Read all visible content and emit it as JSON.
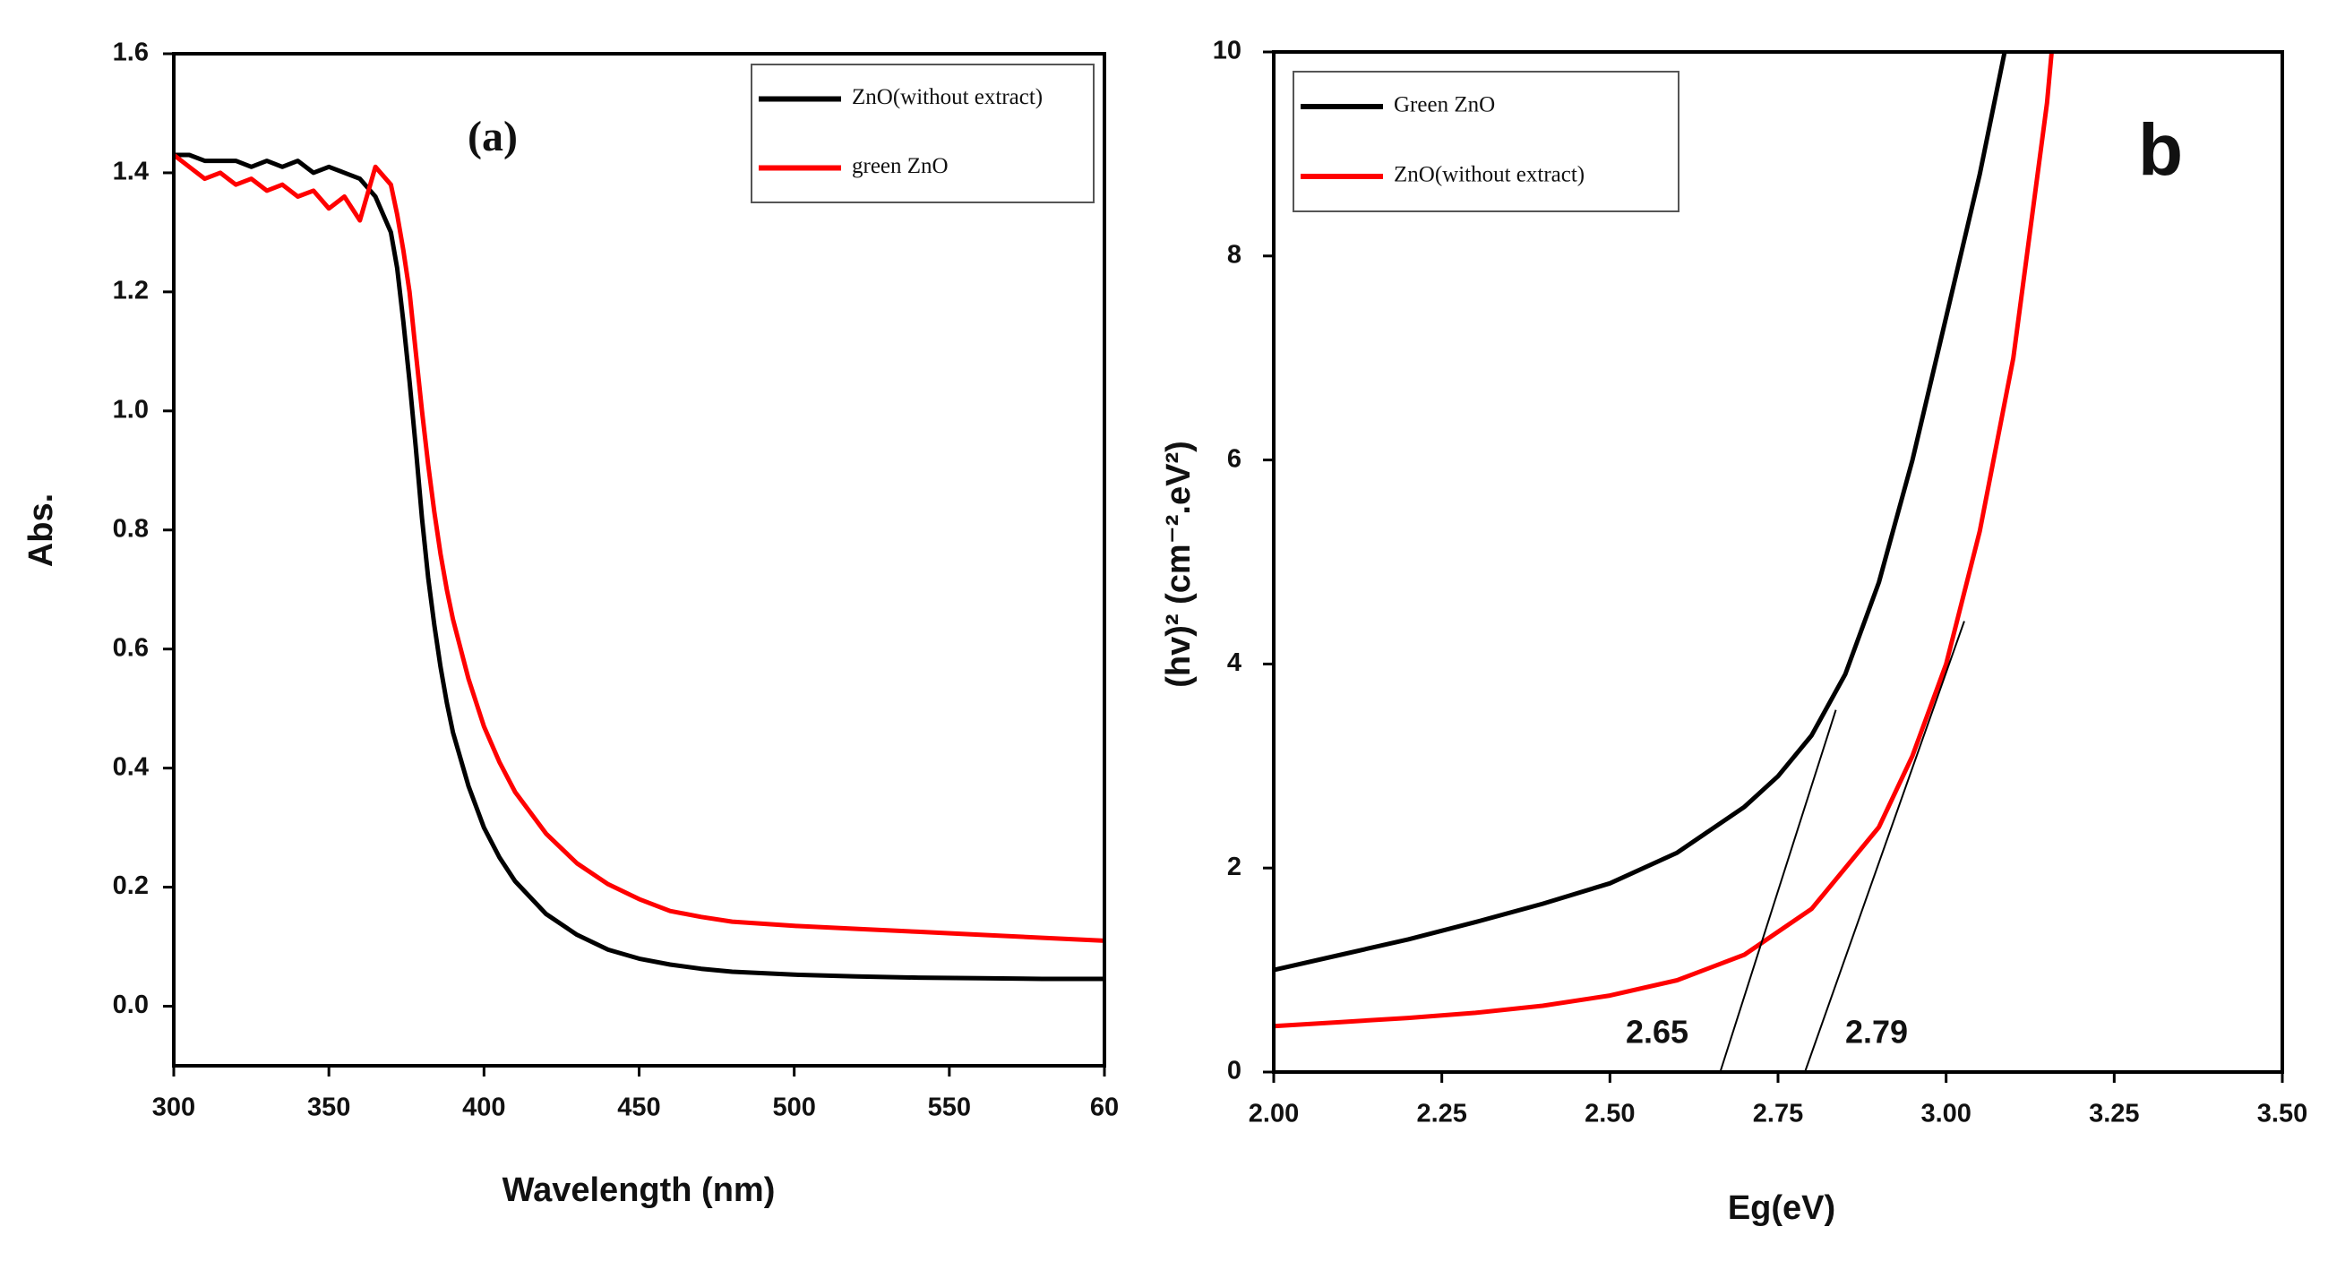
{
  "chart_data": [
    {
      "type": "line",
      "xlabel": "Wavelength (nm)",
      "ylabel": "Abs.",
      "annotations": [
        "(a)"
      ],
      "xlim": [
        300,
        600
      ],
      "ylim": [
        -0.1,
        1.6
      ],
      "xticks": [
        300,
        350,
        400,
        450,
        500,
        550,
        {
          "value": 600,
          "label": "60"
        }
      ],
      "yticks": [
        {
          "value": 0,
          "label": "0.0"
        },
        0.2,
        0.4,
        0.6,
        0.8,
        {
          "value": 1,
          "label": "1.0"
        },
        1.2,
        1.4,
        1.6
      ],
      "legend": "upper right",
      "x": [
        300,
        305,
        310,
        315,
        320,
        325,
        330,
        335,
        340,
        345,
        350,
        355,
        360,
        365,
        370,
        372,
        374,
        376,
        378,
        380,
        382,
        384,
        386,
        388,
        390,
        395,
        400,
        405,
        410,
        420,
        430,
        440,
        450,
        460,
        470,
        480,
        500,
        520,
        540,
        560,
        580,
        600
      ],
      "series": [
        {
          "name": "ZnO(without extract)",
          "color": "#000000",
          "values": [
            1.43,
            1.43,
            1.42,
            1.42,
            1.42,
            1.41,
            1.42,
            1.41,
            1.42,
            1.4,
            1.41,
            1.4,
            1.39,
            1.36,
            1.3,
            1.24,
            1.15,
            1.05,
            0.94,
            0.82,
            0.72,
            0.64,
            0.57,
            0.51,
            0.46,
            0.37,
            0.3,
            0.25,
            0.21,
            0.155,
            0.12,
            0.095,
            0.08,
            0.07,
            0.063,
            0.058,
            0.053,
            0.05,
            0.048,
            0.047,
            0.046,
            0.046
          ]
        },
        {
          "name": "green ZnO",
          "color": "#ff0000",
          "values": [
            1.43,
            1.41,
            1.39,
            1.4,
            1.38,
            1.39,
            1.37,
            1.38,
            1.36,
            1.37,
            1.34,
            1.36,
            1.32,
            1.41,
            1.38,
            1.33,
            1.27,
            1.2,
            1.1,
            1.0,
            0.91,
            0.83,
            0.76,
            0.7,
            0.65,
            0.55,
            0.47,
            0.41,
            0.36,
            0.29,
            0.24,
            0.205,
            0.18,
            0.16,
            0.15,
            0.142,
            0.135,
            0.13,
            0.125,
            0.12,
            0.115,
            0.11
          ]
        }
      ]
    },
    {
      "type": "line",
      "xlabel": "Eg(eV)",
      "ylabel": "(hv)² (cm⁻².eV²)",
      "annotations": [
        "b",
        "2.65",
        "2.79"
      ],
      "xlim": [
        2.0,
        3.5
      ],
      "ylim": [
        0,
        10
      ],
      "xticks": [
        {
          "value": 2,
          "label": "2.00"
        },
        2.25,
        {
          "value": 2.5,
          "label": "2.50"
        },
        2.75,
        {
          "value": 3,
          "label": "3.00"
        },
        3.25,
        {
          "value": 3.5,
          "label": "3.50"
        }
      ],
      "yticks": [
        0,
        2,
        4,
        6,
        8,
        10
      ],
      "legend": "upper left",
      "series": [
        {
          "name": "Green ZnO",
          "color": "#000000",
          "x": [
            2.0,
            2.1,
            2.2,
            2.3,
            2.4,
            2.5,
            2.6,
            2.7,
            2.75,
            2.8,
            2.85,
            2.9,
            2.95,
            3.0,
            3.05,
            3.087
          ],
          "values": [
            1.0,
            1.15,
            1.3,
            1.47,
            1.65,
            1.85,
            2.15,
            2.6,
            2.9,
            3.3,
            3.9,
            4.8,
            6.0,
            7.4,
            8.8,
            10
          ]
        },
        {
          "name": "ZnO(without extract)",
          "color": "#ff0000",
          "x": [
            2.0,
            2.1,
            2.2,
            2.3,
            2.4,
            2.5,
            2.6,
            2.7,
            2.8,
            2.9,
            2.95,
            3.0,
            3.05,
            3.1,
            3.15,
            3.157
          ],
          "values": [
            0.45,
            0.49,
            0.53,
            0.58,
            0.65,
            0.75,
            0.9,
            1.15,
            1.6,
            2.4,
            3.1,
            4.0,
            5.3,
            7.0,
            9.5,
            10
          ]
        }
      ],
      "tangent_lines": [
        {
          "x": [
            2.664,
            2.836
          ],
          "y": [
            0,
            3.55
          ]
        },
        {
          "x": [
            2.79,
            3.027
          ],
          "y": [
            0,
            4.42
          ]
        }
      ]
    }
  ]
}
